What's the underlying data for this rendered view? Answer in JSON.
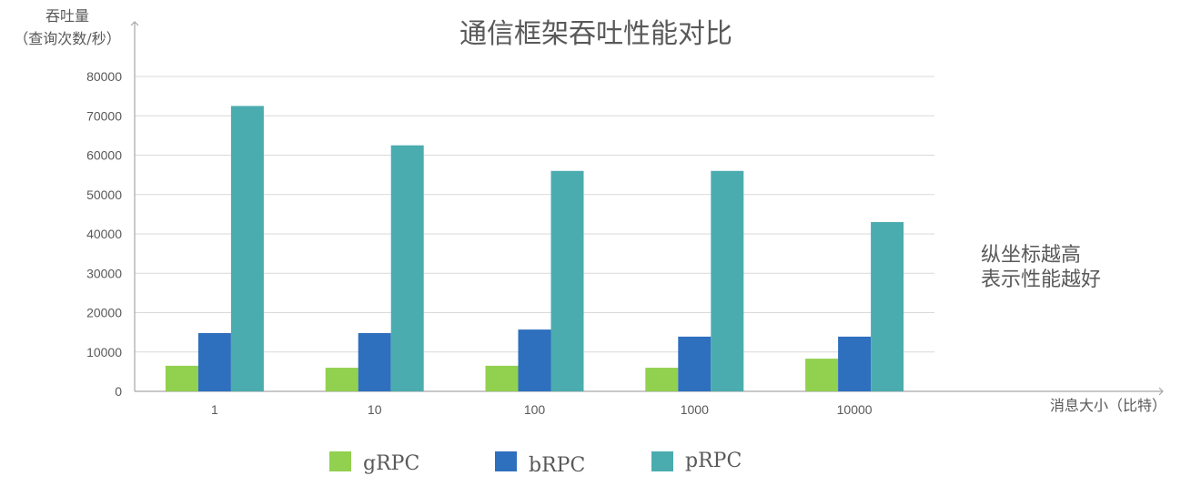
{
  "chart_data": {
    "type": "bar",
    "title": "通信框架吞吐性能对比",
    "ylabel_line1": "吞吐量",
    "ylabel_line2": "（查询次数/秒）",
    "xlabel": "消息大小（比特）",
    "categories": [
      "1",
      "10",
      "100",
      "1000",
      "10000"
    ],
    "ylim": [
      0,
      80000
    ],
    "yticks": [
      0,
      10000,
      20000,
      30000,
      40000,
      50000,
      60000,
      70000,
      80000
    ],
    "grid": true,
    "legend_position": "bottom",
    "series": [
      {
        "name": "gRPC",
        "color": "#92d050",
        "values": [
          6500,
          6000,
          6500,
          6000,
          8300
        ]
      },
      {
        "name": "bRPC",
        "color": "#2e6fbe",
        "values": [
          14800,
          14800,
          15700,
          13900,
          13900
        ]
      },
      {
        "name": "pRPC",
        "color": "#4bacb0",
        "values": [
          72500,
          62500,
          56000,
          56000,
          43000
        ]
      }
    ],
    "annotation_line1": "纵坐标越高",
    "annotation_line2": "表示性能越好"
  }
}
